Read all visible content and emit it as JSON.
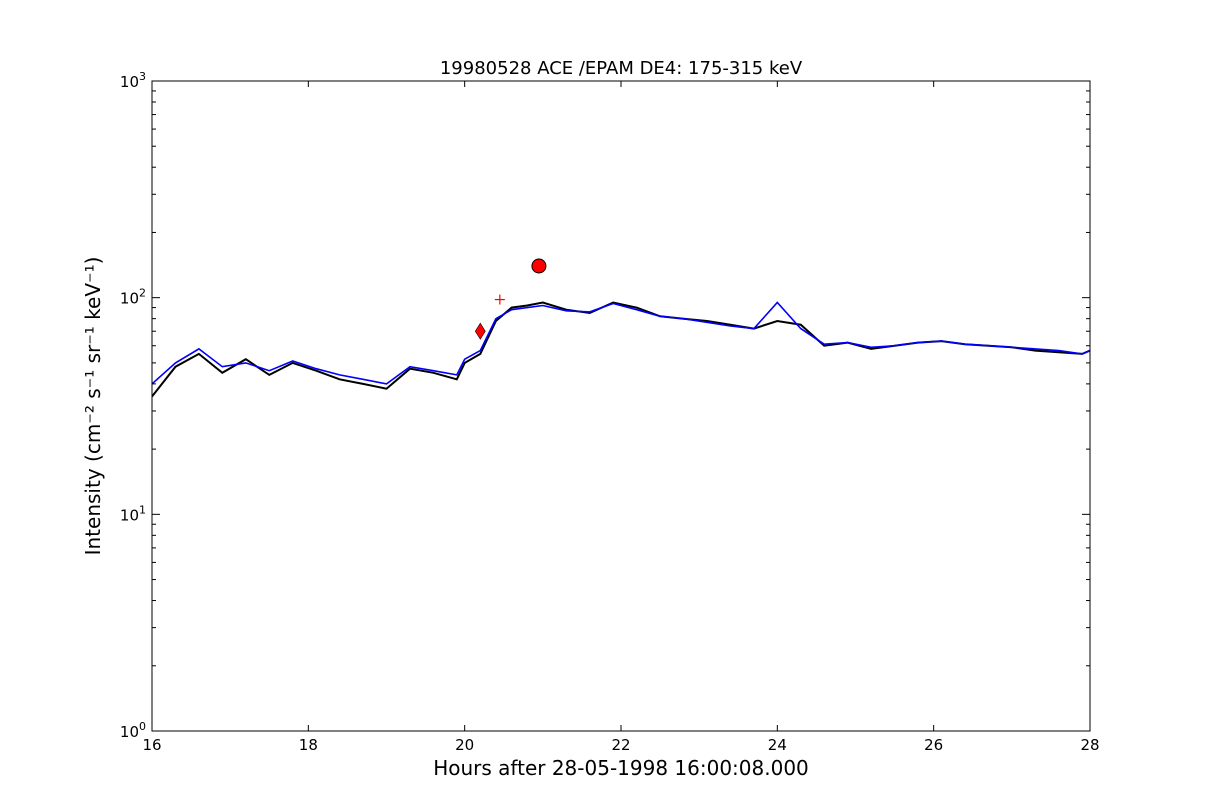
{
  "chart_data": {
    "type": "line",
    "title": "19980528 ACE /EPAM DE4: 175-315 keV",
    "xlabel": "Hours after 28-05-1998 16:00:08.000",
    "ylabel": "Intensity (cm⁻² s⁻¹ sr⁻¹ keV⁻¹)",
    "xlim": [
      16,
      28
    ],
    "ylim": [
      1,
      1000
    ],
    "yscale": "log",
    "grid": false,
    "x_ticks": [
      {
        "value": 16,
        "label": "16"
      },
      {
        "value": 18,
        "label": "18"
      },
      {
        "value": 20,
        "label": "20"
      },
      {
        "value": 22,
        "label": "22"
      },
      {
        "value": 24,
        "label": "24"
      },
      {
        "value": 26,
        "label": "26"
      },
      {
        "value": 28,
        "label": "28"
      }
    ],
    "y_ticks": [
      {
        "value": 1,
        "mantissa": "10",
        "exponent": "0"
      },
      {
        "value": 10,
        "mantissa": "10",
        "exponent": "1"
      },
      {
        "value": 100,
        "mantissa": "10",
        "exponent": "2"
      },
      {
        "value": 1000,
        "mantissa": "10",
        "exponent": "3"
      }
    ],
    "series": [
      {
        "color": "#000000",
        "x": [
          16.0,
          16.3,
          16.6,
          16.9,
          17.2,
          17.5,
          17.8,
          18.1,
          18.4,
          18.7,
          19.0,
          19.3,
          19.6,
          19.9,
          20.0,
          20.2,
          20.4,
          20.6,
          20.8,
          21.0,
          21.3,
          21.6,
          21.9,
          22.2,
          22.5,
          22.8,
          23.1,
          23.4,
          23.7,
          24.0,
          24.3,
          24.6,
          24.9,
          25.2,
          25.5,
          25.8,
          26.1,
          26.4,
          26.7,
          27.0,
          27.3,
          27.6,
          27.9,
          28.0
        ],
        "y": [
          35,
          48,
          55,
          45,
          52,
          44,
          50,
          46,
          42,
          40,
          38,
          47,
          45,
          42,
          50,
          55,
          78,
          90,
          92,
          95,
          88,
          85,
          95,
          90,
          82,
          80,
          78,
          75,
          72,
          78,
          75,
          60,
          62,
          58,
          60,
          62,
          63,
          61,
          60,
          59,
          57,
          56,
          55,
          57
        ]
      },
      {
        "color": "#0000ff",
        "x": [
          16.0,
          16.3,
          16.6,
          16.9,
          17.2,
          17.5,
          17.8,
          18.1,
          18.4,
          18.7,
          19.0,
          19.3,
          19.6,
          19.9,
          20.0,
          20.2,
          20.4,
          20.6,
          20.8,
          21.0,
          21.3,
          21.6,
          21.9,
          22.2,
          22.5,
          22.8,
          23.1,
          23.4,
          23.7,
          24.0,
          24.3,
          24.6,
          24.9,
          25.2,
          25.5,
          25.8,
          26.1,
          26.4,
          26.7,
          27.0,
          27.3,
          27.6,
          27.9,
          28.0
        ],
        "y": [
          40,
          50,
          58,
          48,
          50,
          46,
          51,
          47,
          44,
          42,
          40,
          48,
          46,
          44,
          52,
          57,
          80,
          88,
          90,
          92,
          87,
          86,
          94,
          88,
          82,
          80,
          77,
          74,
          72,
          95,
          72,
          61,
          62,
          59,
          60,
          62,
          63,
          61,
          60,
          59,
          58,
          57,
          55,
          57
        ]
      }
    ],
    "markers": [
      {
        "shape": "diamond",
        "x": 20.2,
        "y": 70,
        "color": "#ff0000"
      },
      {
        "shape": "plus",
        "x": 20.45,
        "y": 98,
        "color": "#ff0000"
      },
      {
        "shape": "circle",
        "x": 20.95,
        "y": 140,
        "color": "#ff0000"
      }
    ]
  }
}
